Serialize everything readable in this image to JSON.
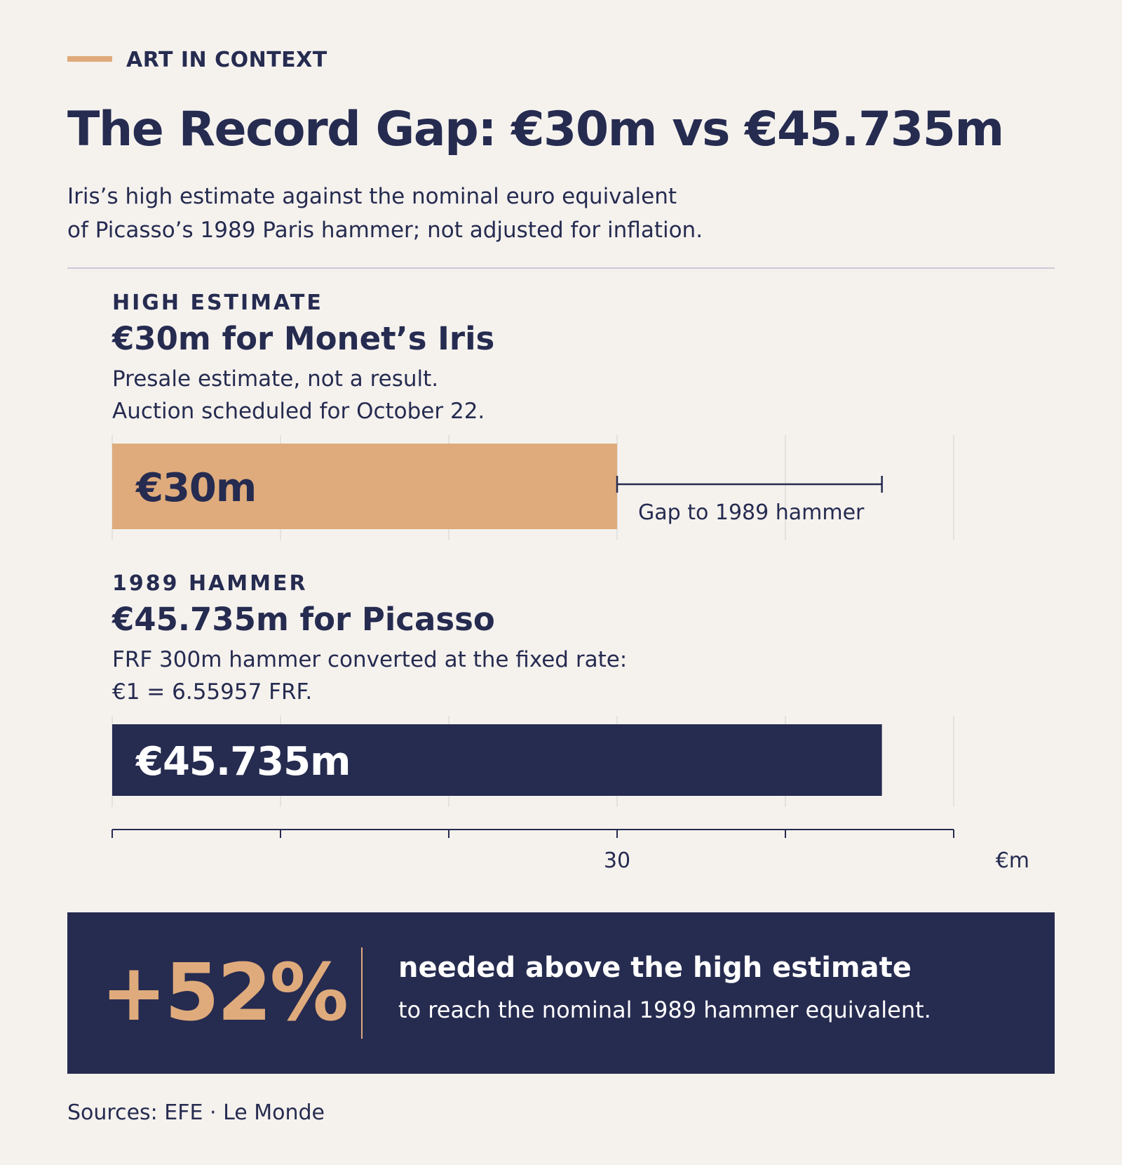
{
  "header": {
    "kicker": "ART IN CONTEXT",
    "title": "The Record Gap: €30m vs €45.735m",
    "subtitle_lines": [
      "Iris’s high estimate against the nominal euro equivalent",
      "of Picasso’s 1989 Paris hammer; not adjusted for inflation."
    ]
  },
  "sections": [
    {
      "label": "HIGH ESTIMATE",
      "title": "€30m for Monet’s Iris",
      "note_lines": [
        "Presale estimate, not a result.",
        "Auction scheduled for October 22."
      ]
    },
    {
      "label": "1989 HAMMER",
      "title": "€45.735m for Picasso",
      "note_lines": [
        "FRF 300m hammer converted at the fixed rate:",
        "€1 = 6.55957 FRF."
      ]
    }
  ],
  "chart_data": {
    "type": "bar",
    "orientation": "horizontal",
    "categories": [
      "HIGH ESTIMATE",
      "1989 HAMMER"
    ],
    "values": [
      30,
      45.735
    ],
    "value_labels": [
      "€30m",
      "€45.735m"
    ],
    "bar_colors": [
      "#dfab7c",
      "#262b50"
    ],
    "bar_label_colors": [
      "#262b50",
      "#ffffff"
    ],
    "xlim": [
      0,
      50
    ],
    "xticks": [
      0,
      10,
      20,
      30,
      40,
      50
    ],
    "xtick_labels": [
      "",
      "",
      "",
      "30",
      "",
      ""
    ],
    "x_unit": "€m",
    "grid": true,
    "annotation": {
      "from": 30,
      "to": 45.735,
      "text": "Gap to 1989 hammer"
    }
  },
  "callout": {
    "value": "+52%",
    "headline": "needed above the high estimate",
    "subline": "to reach the nominal 1989 hammer equivalent."
  },
  "sources": "Sources: EFE · Le Monde",
  "colors": {
    "background": "#f5f2ee",
    "navy": "#262b50",
    "accent": "#dfab7c",
    "grid": "#dcdcdc"
  }
}
